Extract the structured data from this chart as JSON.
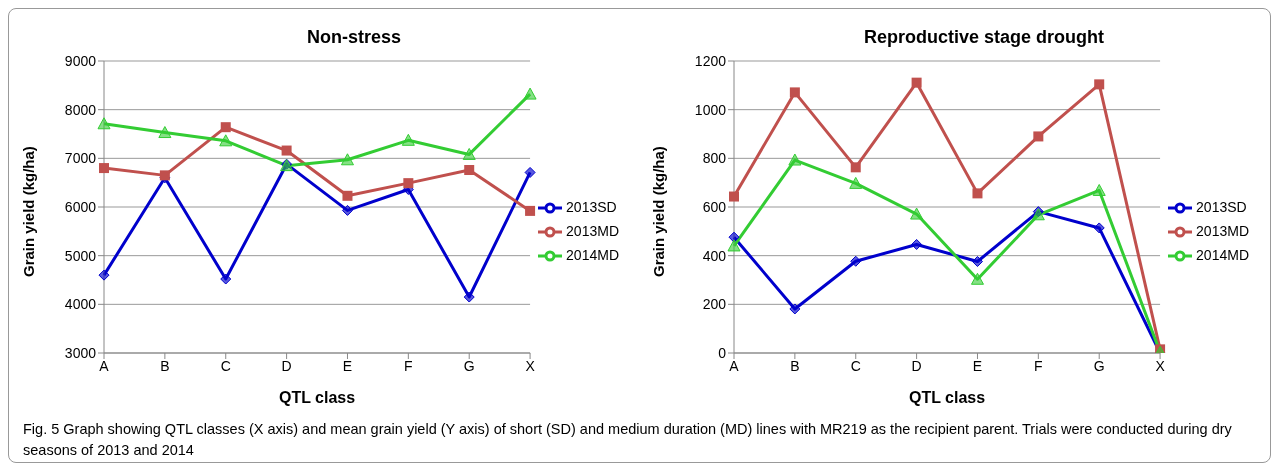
{
  "chart_data": [
    {
      "type": "line",
      "title": "Non-stress",
      "xlabel": "QTL class",
      "ylabel": "Grain yield (kg/ha)",
      "categories": [
        "A",
        "B",
        "C",
        "D",
        "E",
        "F",
        "G",
        "X"
      ],
      "series": [
        {
          "name": "2013SD",
          "color": "#0000cc",
          "marker": "diamond",
          "values": [
            4600,
            6600,
            4520,
            6880,
            5930,
            6360,
            4150,
            6710
          ]
        },
        {
          "name": "2013MD",
          "color": "#c0504d",
          "marker": "square",
          "values": [
            6800,
            6650,
            7640,
            7160,
            6230,
            6490,
            6760,
            5920
          ]
        },
        {
          "name": "2014MD",
          "color": "#33cc33",
          "marker": "triangle",
          "values": [
            7710,
            7530,
            7360,
            6850,
            6970,
            7370,
            7080,
            8320
          ]
        }
      ],
      "ylim": [
        3000,
        9000
      ],
      "yticks": [
        3000,
        4000,
        5000,
        6000,
        7000,
        8000,
        9000
      ],
      "grid": "y",
      "legend": "right",
      "annotations": [
        "Fig. 5 Graph showing QTL classes (X axis) and mean grain yield (Y axis) of short (SD) and medium duration (MD) lines with MR219 as the recipient parent. Trials were conducted during dry seasons of 2013 and 2014"
      ]
    },
    {
      "type": "line",
      "title": "Reproductive stage drought",
      "xlabel": "QTL class",
      "ylabel": "Grain yield (kg/ha)",
      "categories": [
        "A",
        "B",
        "C",
        "D",
        "E",
        "F",
        "G",
        "X"
      ],
      "series": [
        {
          "name": "2013SD",
          "color": "#0000cc",
          "marker": "diamond",
          "values": [
            476,
            181,
            377,
            446,
            376,
            581,
            514,
            0
          ]
        },
        {
          "name": "2013MD",
          "color": "#c0504d",
          "marker": "square",
          "values": [
            643,
            1071,
            763,
            1111,
            656,
            890,
            1104,
            15
          ]
        },
        {
          "name": "2014MD",
          "color": "#33cc33",
          "marker": "triangle",
          "values": [
            440,
            793,
            697,
            571,
            303,
            568,
            668,
            3
          ]
        }
      ],
      "ylim": [
        0,
        1200
      ],
      "yticks": [
        0,
        200,
        400,
        600,
        800,
        1000,
        1200
      ],
      "grid": "y",
      "legend": "right"
    }
  ]
}
